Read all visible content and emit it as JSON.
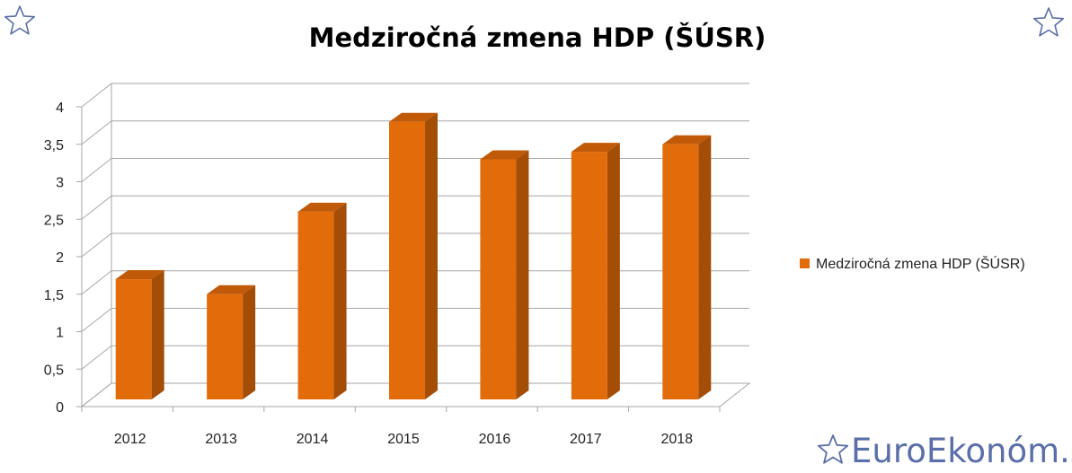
{
  "chart_data": {
    "type": "bar",
    "title": "Medziročná zmena HDP (ŠÚSR)",
    "categories": [
      "2012",
      "2013",
      "2014",
      "2015",
      "2016",
      "2017",
      "2018"
    ],
    "series": [
      {
        "name": "Medziročná zmena HDP (ŠÚSR)",
        "values": [
          1.7,
          1.5,
          2.6,
          3.8,
          3.3,
          3.4,
          3.5
        ]
      }
    ],
    "ylim": [
      0,
      4
    ],
    "yticks": [
      "0",
      "0,5",
      "1",
      "1,5",
      "2",
      "2,5",
      "3",
      "3,5",
      "4"
    ],
    "xlabel": "",
    "ylabel": "",
    "grid": true,
    "legend_position": "right",
    "style": "3d-column"
  },
  "colors": {
    "bar_front": "#e36c0a",
    "bar_side": "#a34d07",
    "bar_top": "#c05a08",
    "grid": "#a6a6a6",
    "star_icon": "#5a6ea8"
  },
  "decor": {
    "left_corner_icon": "star-outline-icon",
    "right_corner_icon": "star-outline-icon",
    "watermark_icon": "star-outline-icon",
    "watermark_text": "EuroEkonóm.sk"
  }
}
